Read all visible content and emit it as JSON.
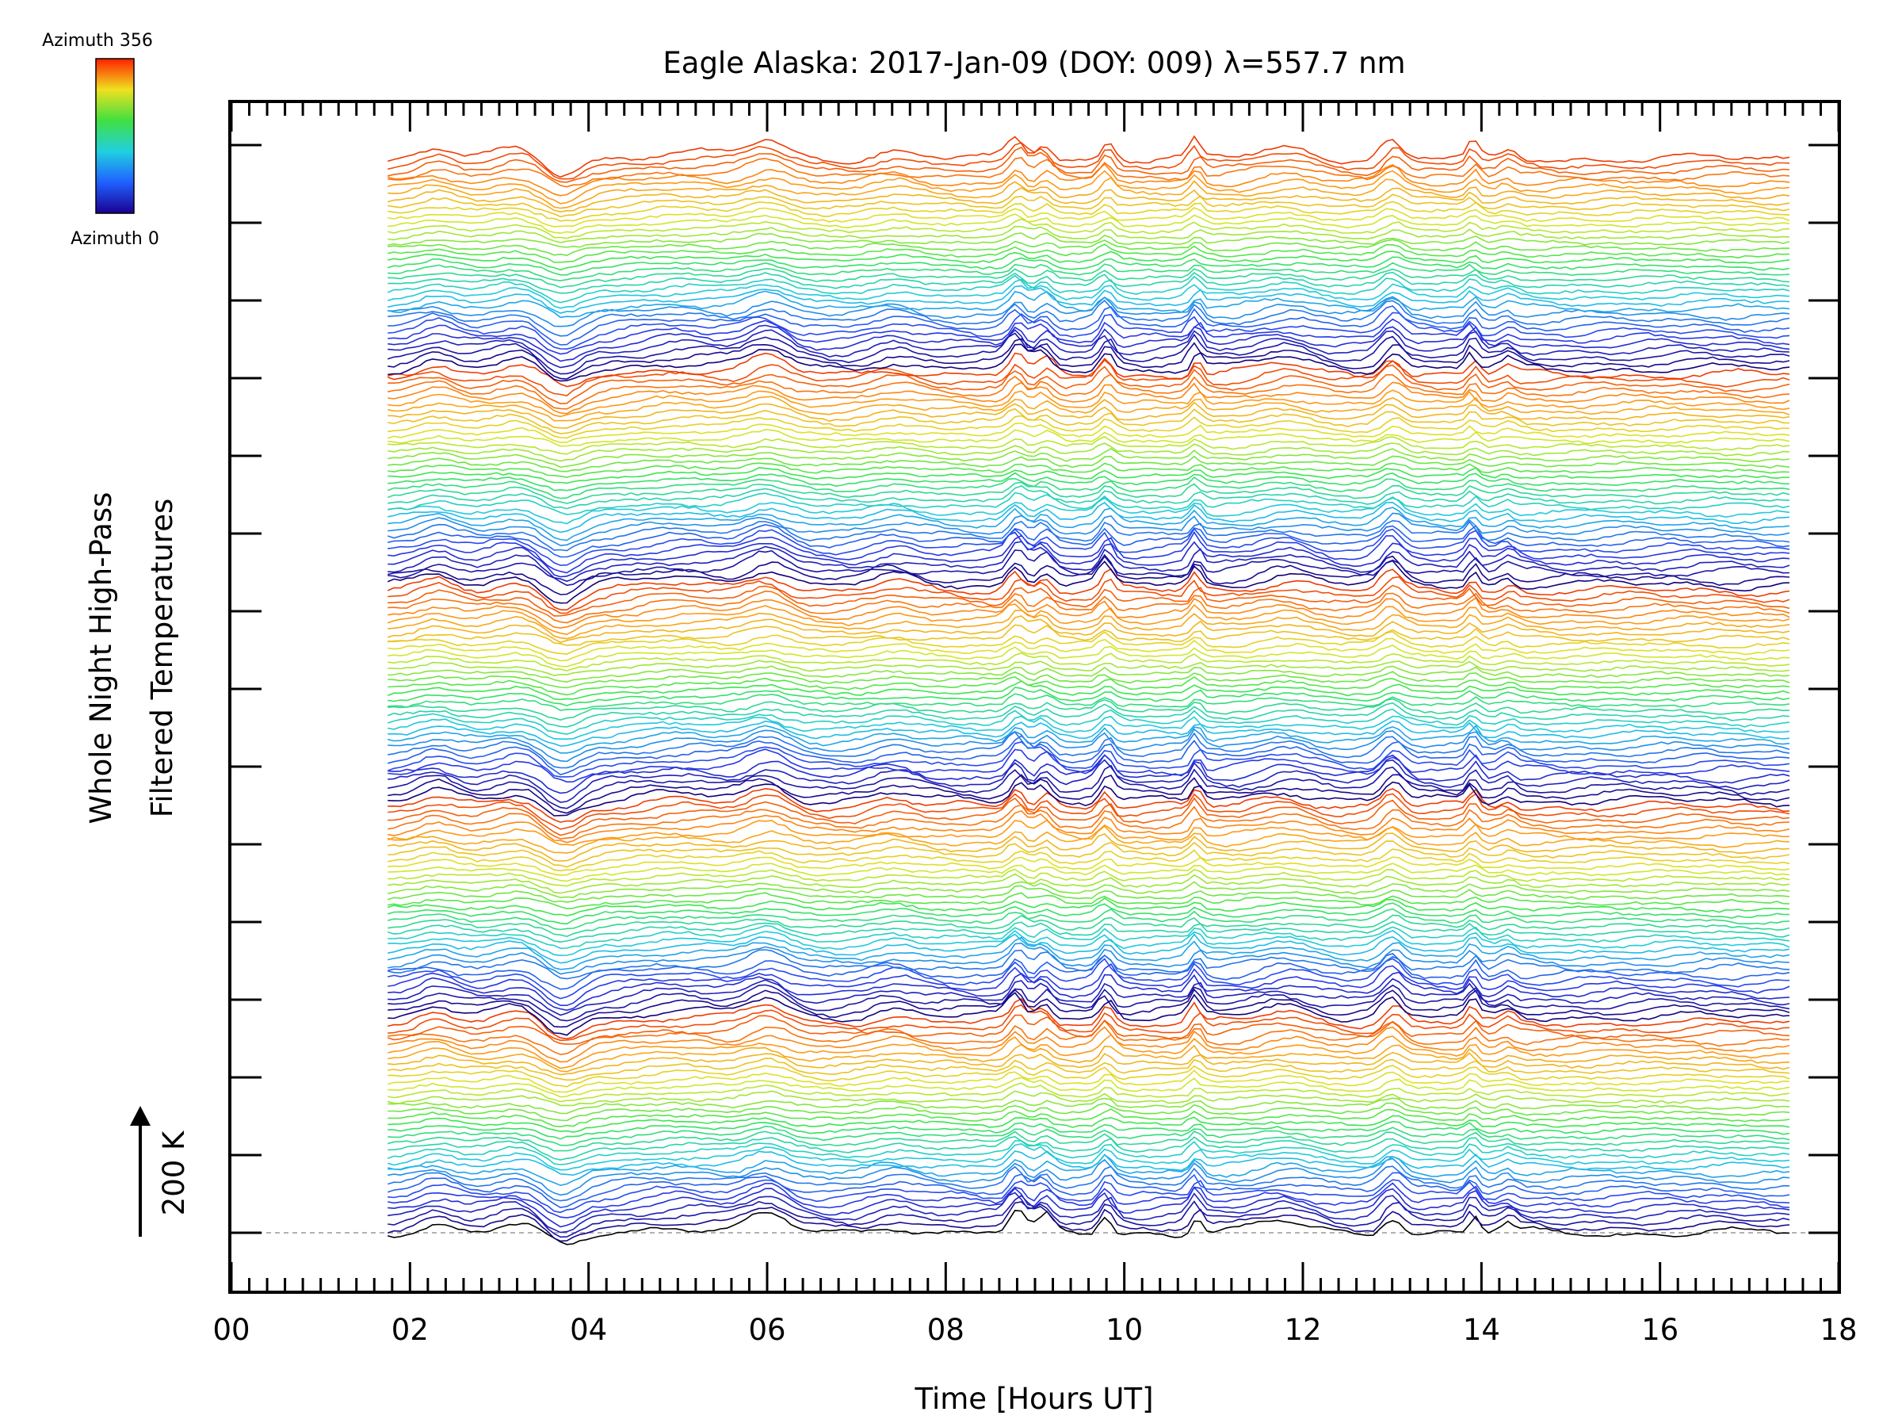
{
  "chart_data": {
    "type": "line",
    "title": "Eagle Alaska: 2017-Jan-09 (DOY: 009) λ=557.7 nm",
    "xlabel": "Time [Hours UT]",
    "ylabel_line1": "Whole Night High-Pass",
    "ylabel_line2": "Filtered Temperatures",
    "xlim": [
      0,
      18
    ],
    "x_ticks": [
      "00",
      "02",
      "04",
      "06",
      "08",
      "10",
      "12",
      "14",
      "16",
      "18"
    ],
    "data_x_range": [
      1.75,
      17.45
    ],
    "scale_bar_label": "200 K",
    "grid": false,
    "colorbar": {
      "top_label": "Azimuth 356",
      "bottom_label": "Azimuth 0",
      "min": 0,
      "max": 356,
      "colormap": "rainbow"
    },
    "series_count": 180,
    "azimuth_cycles": 5,
    "events_hours_ut": [
      2.3,
      3.2,
      3.7,
      5.0,
      6.0,
      7.4,
      8.8,
      9.1,
      9.8,
      10.8,
      11.8,
      13.0,
      13.9,
      14.3
    ]
  }
}
